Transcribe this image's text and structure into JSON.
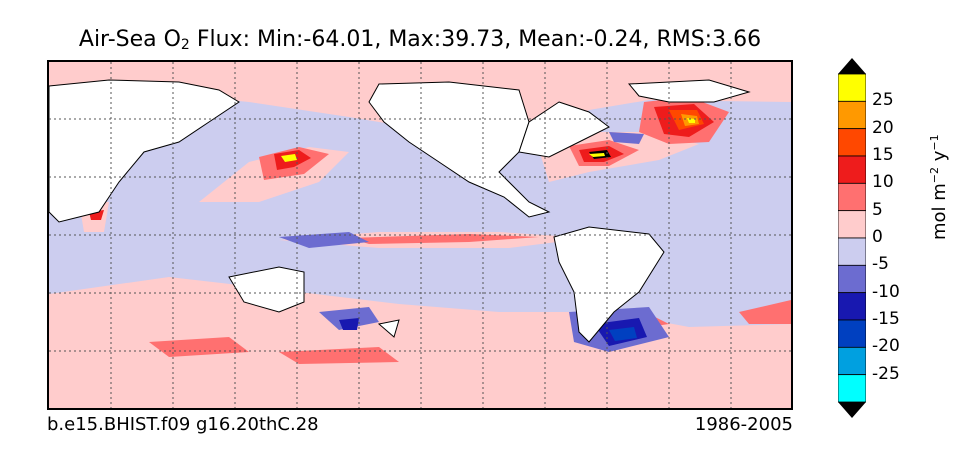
{
  "title": {
    "prefix": "Air-Sea O",
    "subscript": "2",
    "suffix": " Flux: Min:-64.01, Max:39.73, Mean:-0.24, RMS:3.66"
  },
  "footer": {
    "case_name": "b.e15.BHIST.f09 g16.20thC.28",
    "period": "1986-2005"
  },
  "colorbar": {
    "units": {
      "base": "mol m",
      "exp1": "−2",
      "mid": " y",
      "exp2": "−1"
    },
    "tick_labels": [
      "25",
      "20",
      "15",
      "10",
      "5",
      "0",
      "-5",
      "-10",
      "-15",
      "-20",
      "-25"
    ],
    "levels": [
      {
        "range": "below -30",
        "color": "#000000"
      },
      {
        "range": "-30 to -25",
        "color": "#00ffff"
      },
      {
        "range": "-25 to -20",
        "color": "#00a0e0"
      },
      {
        "range": "-20 to -15",
        "color": "#0040c0"
      },
      {
        "range": "-15 to -10",
        "color": "#1818b0"
      },
      {
        "range": "-10 to -5",
        "color": "#6c6cd0"
      },
      {
        "range": "-5 to 0",
        "color": "#cccdef"
      },
      {
        "range": "0 to 5",
        "color": "#ffcccc"
      },
      {
        "range": "5 to 10",
        "color": "#ff7070"
      },
      {
        "range": "10 to 15",
        "color": "#ee1c1c"
      },
      {
        "range": "15 to 20",
        "color": "#ff4800"
      },
      {
        "range": "20 to 25",
        "color": "#ff9900"
      },
      {
        "range": "25 to 30",
        "color": "#ffff00"
      },
      {
        "range": "above 30",
        "color": "#000000"
      }
    ]
  },
  "map": {
    "land_color": "#ffffff",
    "ocean_default_color": "#cccdef",
    "graticule": "dotted"
  }
}
